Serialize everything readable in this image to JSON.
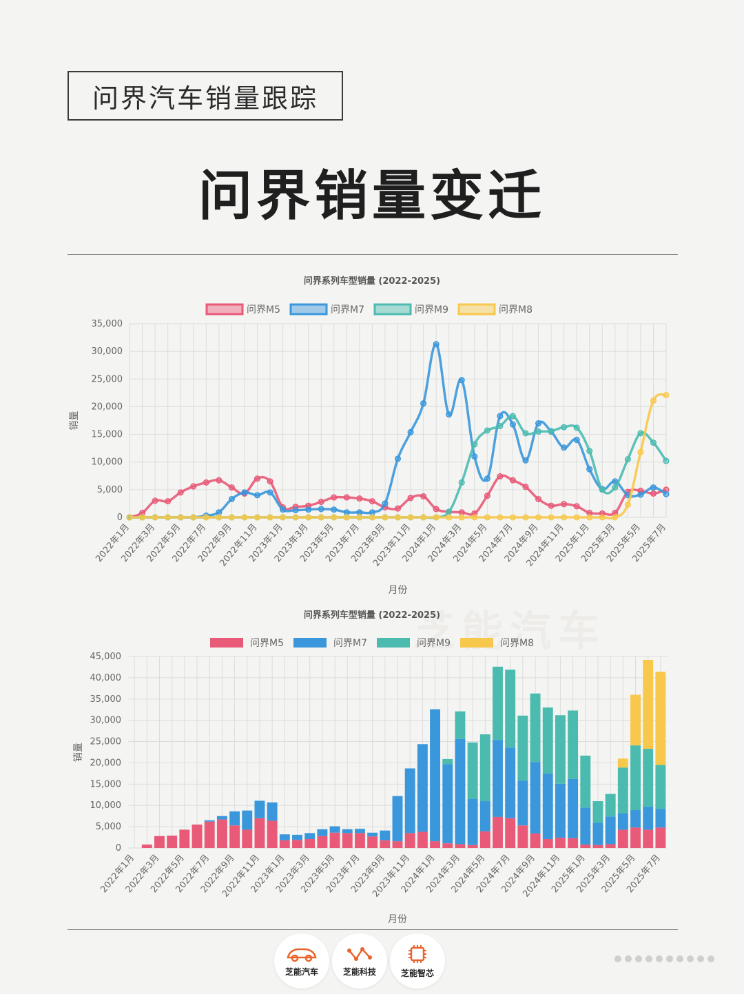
{
  "header": {
    "tag": "问界汽车销量跟踪",
    "headline": "问界销量变迁"
  },
  "colors": {
    "M5": "#e85a78",
    "M7": "#3a97db",
    "M9": "#4bbbb0",
    "M8": "#f7c84b"
  },
  "watermark": "芝能汽车",
  "chart_data": [
    {
      "type": "line",
      "title": "问界系列车型销量 (2022-2025)",
      "xlabel": "月份",
      "ylabel": "销量",
      "ylim": [
        0,
        35000
      ],
      "yticks": [
        "0",
        "5,000",
        "10,000",
        "15,000",
        "20,000",
        "25,000",
        "30,000",
        "35,000"
      ],
      "xticks": [
        "2022年1月",
        "2022年3月",
        "2022年5月",
        "2022年7月",
        "2022年9月",
        "2022年11月",
        "2023年1月",
        "2023年3月",
        "2023年5月",
        "2023年7月",
        "2023年9月",
        "2023年11月",
        "2024年1月",
        "2024年3月",
        "2024年5月",
        "2024年7月",
        "2024年9月",
        "2024年11月",
        "2025年1月",
        "2025年3月",
        "2025年5月",
        "2025年7月"
      ],
      "legend_position": "top",
      "series": [
        {
          "name": "问界M5",
          "values": [
            0,
            800,
            3000,
            2900,
            4500,
            5600,
            6300,
            6700,
            5400,
            4300,
            7000,
            6500,
            1800,
            1900,
            2100,
            2800,
            3600,
            3600,
            3400,
            2900,
            1800,
            1600,
            3500,
            3800,
            1500,
            1000,
            900,
            700,
            3900,
            7400,
            6700,
            5500,
            3300,
            2100,
            2400,
            2000,
            800,
            700,
            800,
            4600,
            4800,
            4300,
            5000
          ]
        },
        {
          "name": "问界M7",
          "values": [
            0,
            0,
            0,
            0,
            0,
            0,
            300,
            900,
            3300,
            4500,
            4000,
            4500,
            1400,
            1300,
            1400,
            1500,
            1400,
            900,
            900,
            900,
            2500,
            10600,
            15400,
            20600,
            31300,
            18600,
            24800,
            11000,
            7000,
            18300,
            16800,
            10300,
            17000,
            15500,
            12600,
            14000,
            8700,
            5100,
            6500,
            4000,
            4100,
            5400,
            4200
          ]
        },
        {
          "name": "问界M9",
          "values": [
            0,
            0,
            0,
            0,
            0,
            0,
            0,
            0,
            0,
            0,
            0,
            0,
            0,
            0,
            0,
            0,
            0,
            0,
            0,
            0,
            0,
            0,
            0,
            0,
            0,
            1000,
            6300,
            13200,
            15700,
            16500,
            18300,
            15200,
            15500,
            15600,
            16300,
            16200,
            12000,
            5000,
            5400,
            10500,
            15200,
            13500,
            10200
          ]
        },
        {
          "name": "问界M8",
          "values": [
            0,
            0,
            0,
            0,
            0,
            0,
            0,
            0,
            0,
            0,
            0,
            0,
            0,
            0,
            0,
            0,
            0,
            0,
            0,
            0,
            0,
            0,
            0,
            0,
            0,
            0,
            0,
            0,
            0,
            0,
            0,
            0,
            0,
            0,
            0,
            0,
            0,
            0,
            0,
            2300,
            11800,
            21100,
            22100
          ]
        }
      ]
    },
    {
      "type": "bar",
      "stacked": true,
      "title": "问界系列车型销量 (2022-2025)",
      "xlabel": "月份",
      "ylabel": "销量",
      "ylim": [
        0,
        45000
      ],
      "yticks": [
        "0",
        "5,000",
        "10,000",
        "15,000",
        "20,000",
        "25,000",
        "30,000",
        "35,000",
        "40,000",
        "45,000"
      ],
      "xticks": [
        "2022年1月",
        "2022年3月",
        "2022年5月",
        "2022年7月",
        "2022年9月",
        "2022年11月",
        "2023年1月",
        "2023年3月",
        "2023年5月",
        "2023年7月",
        "2023年9月",
        "2023年11月",
        "2024年1月",
        "2024年3月",
        "2024年5月",
        "2024年7月",
        "2024年9月",
        "2024年11月",
        "2025年1月",
        "2025年3月",
        "2025年5月",
        "2025年7月"
      ],
      "legend_position": "top",
      "series": [
        {
          "name": "问界M5",
          "values": [
            0,
            800,
            2800,
            2900,
            4300,
            5500,
            6200,
            6700,
            5300,
            4300,
            7000,
            6400,
            1800,
            1900,
            2100,
            2800,
            3600,
            3500,
            3500,
            2700,
            1800,
            1600,
            3500,
            3800,
            1600,
            1100,
            900,
            700,
            3900,
            7300,
            7000,
            5300,
            3400,
            2100,
            2400,
            2300,
            800,
            700,
            900,
            4300,
            4800,
            4300,
            4800
          ]
        },
        {
          "name": "问界M7",
          "values": [
            0,
            0,
            0,
            0,
            0,
            0,
            300,
            800,
            3300,
            4500,
            4100,
            4300,
            1400,
            1200,
            1400,
            1600,
            1500,
            900,
            1000,
            900,
            2300,
            10600,
            15200,
            20600,
            31000,
            18600,
            24700,
            10800,
            7100,
            18100,
            16600,
            10500,
            16800,
            15400,
            12700,
            13900,
            8700,
            5200,
            6500,
            3900,
            4100,
            5400,
            4400
          ]
        },
        {
          "name": "问界M9",
          "values": [
            0,
            0,
            0,
            0,
            0,
            0,
            0,
            0,
            0,
            0,
            0,
            0,
            0,
            0,
            0,
            0,
            0,
            0,
            0,
            0,
            0,
            0,
            0,
            0,
            0,
            1200,
            6500,
            13300,
            15700,
            17200,
            18300,
            15300,
            16100,
            15500,
            16100,
            16100,
            12200,
            5100,
            5300,
            10700,
            15200,
            13600,
            10300
          ]
        },
        {
          "name": "问界M8",
          "values": [
            0,
            0,
            0,
            0,
            0,
            0,
            0,
            0,
            0,
            0,
            0,
            0,
            0,
            0,
            0,
            0,
            0,
            0,
            0,
            0,
            0,
            0,
            0,
            0,
            0,
            0,
            0,
            0,
            0,
            0,
            0,
            0,
            0,
            0,
            0,
            0,
            0,
            0,
            0,
            2100,
            11900,
            20900,
            21900
          ]
        }
      ]
    }
  ],
  "footer": {
    "brands": [
      "芝能汽车",
      "芝能科技",
      "芝能智芯"
    ]
  }
}
